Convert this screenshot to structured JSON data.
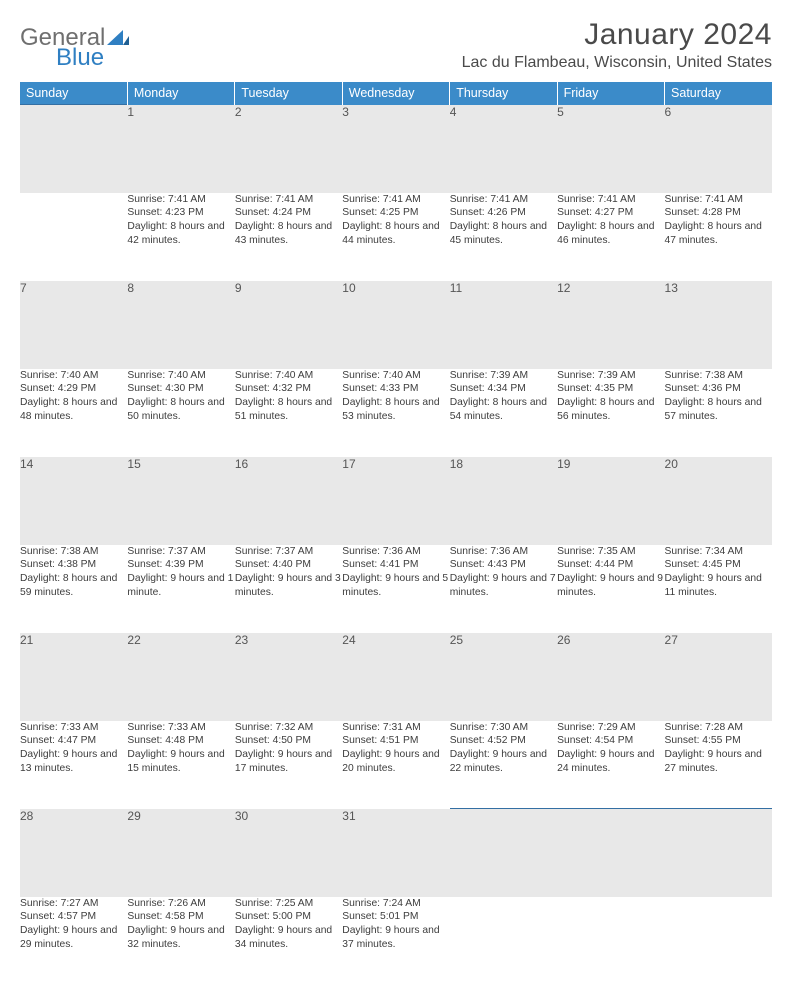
{
  "logo": {
    "word1": "General",
    "word2": "Blue"
  },
  "title": "January 2024",
  "location": "Lac du Flambeau, Wisconsin, United States",
  "header_color": "#3b8bc9",
  "divider_color": "#346fa3",
  "daynum_bg": "#e8e8e8",
  "text_color": "#3d3d3d",
  "weekdays": [
    "Sunday",
    "Monday",
    "Tuesday",
    "Wednesday",
    "Thursday",
    "Friday",
    "Saturday"
  ],
  "weeks": [
    {
      "nums": [
        "",
        "1",
        "2",
        "3",
        "4",
        "5",
        "6"
      ],
      "cells": [
        null,
        {
          "sr": "Sunrise: 7:41 AM",
          "ss": "Sunset: 4:23 PM",
          "dl": "Daylight: 8 hours and 42 minutes."
        },
        {
          "sr": "Sunrise: 7:41 AM",
          "ss": "Sunset: 4:24 PM",
          "dl": "Daylight: 8 hours and 43 minutes."
        },
        {
          "sr": "Sunrise: 7:41 AM",
          "ss": "Sunset: 4:25 PM",
          "dl": "Daylight: 8 hours and 44 minutes."
        },
        {
          "sr": "Sunrise: 7:41 AM",
          "ss": "Sunset: 4:26 PM",
          "dl": "Daylight: 8 hours and 45 minutes."
        },
        {
          "sr": "Sunrise: 7:41 AM",
          "ss": "Sunset: 4:27 PM",
          "dl": "Daylight: 8 hours and 46 minutes."
        },
        {
          "sr": "Sunrise: 7:41 AM",
          "ss": "Sunset: 4:28 PM",
          "dl": "Daylight: 8 hours and 47 minutes."
        }
      ]
    },
    {
      "nums": [
        "7",
        "8",
        "9",
        "10",
        "11",
        "12",
        "13"
      ],
      "cells": [
        {
          "sr": "Sunrise: 7:40 AM",
          "ss": "Sunset: 4:29 PM",
          "dl": "Daylight: 8 hours and 48 minutes."
        },
        {
          "sr": "Sunrise: 7:40 AM",
          "ss": "Sunset: 4:30 PM",
          "dl": "Daylight: 8 hours and 50 minutes."
        },
        {
          "sr": "Sunrise: 7:40 AM",
          "ss": "Sunset: 4:32 PM",
          "dl": "Daylight: 8 hours and 51 minutes."
        },
        {
          "sr": "Sunrise: 7:40 AM",
          "ss": "Sunset: 4:33 PM",
          "dl": "Daylight: 8 hours and 53 minutes."
        },
        {
          "sr": "Sunrise: 7:39 AM",
          "ss": "Sunset: 4:34 PM",
          "dl": "Daylight: 8 hours and 54 minutes."
        },
        {
          "sr": "Sunrise: 7:39 AM",
          "ss": "Sunset: 4:35 PM",
          "dl": "Daylight: 8 hours and 56 minutes."
        },
        {
          "sr": "Sunrise: 7:38 AM",
          "ss": "Sunset: 4:36 PM",
          "dl": "Daylight: 8 hours and 57 minutes."
        }
      ]
    },
    {
      "nums": [
        "14",
        "15",
        "16",
        "17",
        "18",
        "19",
        "20"
      ],
      "cells": [
        {
          "sr": "Sunrise: 7:38 AM",
          "ss": "Sunset: 4:38 PM",
          "dl": "Daylight: 8 hours and 59 minutes."
        },
        {
          "sr": "Sunrise: 7:37 AM",
          "ss": "Sunset: 4:39 PM",
          "dl": "Daylight: 9 hours and 1 minute."
        },
        {
          "sr": "Sunrise: 7:37 AM",
          "ss": "Sunset: 4:40 PM",
          "dl": "Daylight: 9 hours and 3 minutes."
        },
        {
          "sr": "Sunrise: 7:36 AM",
          "ss": "Sunset: 4:41 PM",
          "dl": "Daylight: 9 hours and 5 minutes."
        },
        {
          "sr": "Sunrise: 7:36 AM",
          "ss": "Sunset: 4:43 PM",
          "dl": "Daylight: 9 hours and 7 minutes."
        },
        {
          "sr": "Sunrise: 7:35 AM",
          "ss": "Sunset: 4:44 PM",
          "dl": "Daylight: 9 hours and 9 minutes."
        },
        {
          "sr": "Sunrise: 7:34 AM",
          "ss": "Sunset: 4:45 PM",
          "dl": "Daylight: 9 hours and 11 minutes."
        }
      ]
    },
    {
      "nums": [
        "21",
        "22",
        "23",
        "24",
        "25",
        "26",
        "27"
      ],
      "cells": [
        {
          "sr": "Sunrise: 7:33 AM",
          "ss": "Sunset: 4:47 PM",
          "dl": "Daylight: 9 hours and 13 minutes."
        },
        {
          "sr": "Sunrise: 7:33 AM",
          "ss": "Sunset: 4:48 PM",
          "dl": "Daylight: 9 hours and 15 minutes."
        },
        {
          "sr": "Sunrise: 7:32 AM",
          "ss": "Sunset: 4:50 PM",
          "dl": "Daylight: 9 hours and 17 minutes."
        },
        {
          "sr": "Sunrise: 7:31 AM",
          "ss": "Sunset: 4:51 PM",
          "dl": "Daylight: 9 hours and 20 minutes."
        },
        {
          "sr": "Sunrise: 7:30 AM",
          "ss": "Sunset: 4:52 PM",
          "dl": "Daylight: 9 hours and 22 minutes."
        },
        {
          "sr": "Sunrise: 7:29 AM",
          "ss": "Sunset: 4:54 PM",
          "dl": "Daylight: 9 hours and 24 minutes."
        },
        {
          "sr": "Sunrise: 7:28 AM",
          "ss": "Sunset: 4:55 PM",
          "dl": "Daylight: 9 hours and 27 minutes."
        }
      ]
    },
    {
      "nums": [
        "28",
        "29",
        "30",
        "31",
        "",
        "",
        ""
      ],
      "cells": [
        {
          "sr": "Sunrise: 7:27 AM",
          "ss": "Sunset: 4:57 PM",
          "dl": "Daylight: 9 hours and 29 minutes."
        },
        {
          "sr": "Sunrise: 7:26 AM",
          "ss": "Sunset: 4:58 PM",
          "dl": "Daylight: 9 hours and 32 minutes."
        },
        {
          "sr": "Sunrise: 7:25 AM",
          "ss": "Sunset: 5:00 PM",
          "dl": "Daylight: 9 hours and 34 minutes."
        },
        {
          "sr": "Sunrise: 7:24 AM",
          "ss": "Sunset: 5:01 PM",
          "dl": "Daylight: 9 hours and 37 minutes."
        },
        null,
        null,
        null
      ]
    }
  ]
}
